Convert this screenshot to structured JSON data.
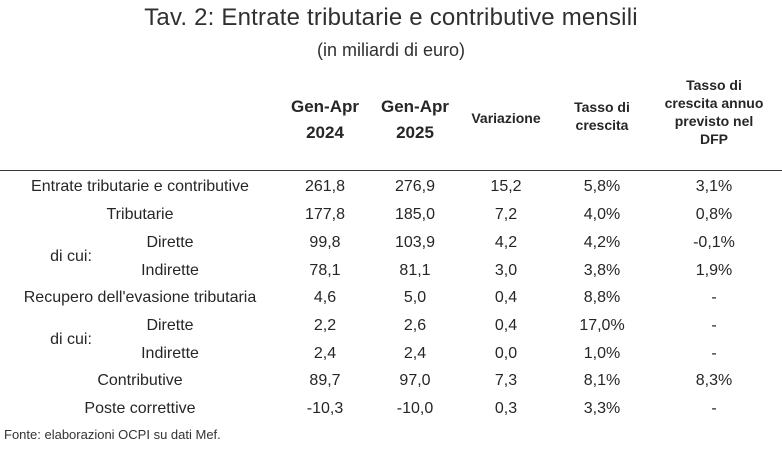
{
  "title": "Tav. 2: Entrate tributarie e contributive mensili",
  "subtitle": "(in miliardi di euro)",
  "headers": {
    "col1_line1": "Gen-Apr",
    "col1_line2": "2024",
    "col2_line1": "Gen-Apr",
    "col2_line2": "2025",
    "variation": "Variazione",
    "rate_line1": "Tasso di",
    "rate_line2": "crescita",
    "dfp_line1": "Tasso di",
    "dfp_line2": "crescita annuo",
    "dfp_line3": "previsto nel",
    "dfp_line4": "DFP"
  },
  "group_label": "di cui:",
  "rows": [
    {
      "label": "Entrate tributarie e contributive",
      "v2024": "261,8",
      "v2025": "276,9",
      "variation": "15,2",
      "rate": "5,8%",
      "dfp": "3,1%"
    },
    {
      "label": "Tributarie",
      "v2024": "177,8",
      "v2025": "185,0",
      "variation": "7,2",
      "rate": "4,0%",
      "dfp": "0,8%"
    },
    {
      "label": "Dirette",
      "v2024": "99,8",
      "v2025": "103,9",
      "variation": "4,2",
      "rate": "4,2%",
      "dfp": "-0,1%"
    },
    {
      "label": "Indirette",
      "v2024": "78,1",
      "v2025": "81,1",
      "variation": "3,0",
      "rate": "3,8%",
      "dfp": "1,9%"
    },
    {
      "label": "Recupero dell'evasione tributaria",
      "v2024": "4,6",
      "v2025": "5,0",
      "variation": "0,4",
      "rate": "8,8%",
      "dfp": "-"
    },
    {
      "label": "Dirette",
      "v2024": "2,2",
      "v2025": "2,6",
      "variation": "0,4",
      "rate": "17,0%",
      "dfp": "-"
    },
    {
      "label": "Indirette",
      "v2024": "2,4",
      "v2025": "2,4",
      "variation": "0,0",
      "rate": "1,0%",
      "dfp": "-"
    },
    {
      "label": "Contributive",
      "v2024": "89,7",
      "v2025": "97,0",
      "variation": "7,3",
      "rate": "8,1%",
      "dfp": "8,3%"
    },
    {
      "label": "Poste correttive",
      "v2024": "-10,3",
      "v2025": "-10,0",
      "variation": "0,3",
      "rate": "3,3%",
      "dfp": "-"
    }
  ],
  "source": "Fonte: elaborazioni OCPI su dati Mef."
}
